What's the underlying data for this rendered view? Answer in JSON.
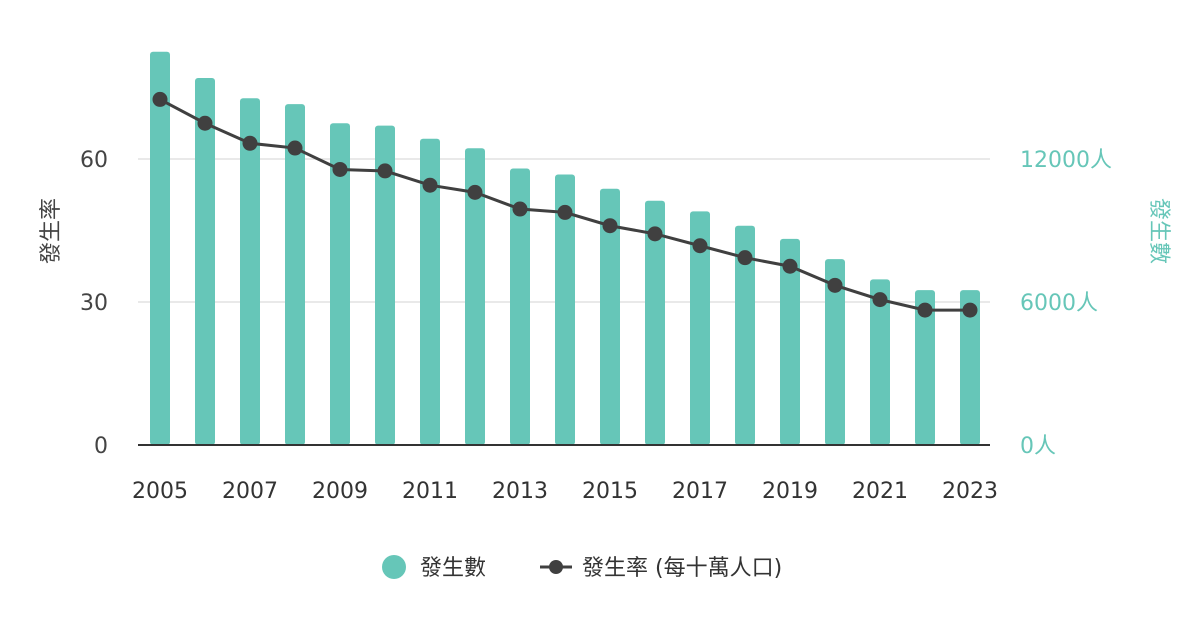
{
  "chart_data": {
    "type": "bar+line",
    "categories": [
      "2005",
      "2006",
      "2007",
      "2008",
      "2009",
      "2010",
      "2011",
      "2012",
      "2013",
      "2014",
      "2015",
      "2016",
      "2017",
      "2018",
      "2019",
      "2020",
      "2021",
      "2022",
      "2023"
    ],
    "x_tick_labels": [
      "2005",
      "2007",
      "2009",
      "2011",
      "2013",
      "2015",
      "2017",
      "2019",
      "2021",
      "2023"
    ],
    "series": [
      {
        "name": "發生數",
        "type": "bar",
        "axis": "right",
        "color": "#66c6b8",
        "values": [
          16500,
          15400,
          14550,
          14300,
          13500,
          13400,
          12850,
          12450,
          11600,
          11350,
          10750,
          10250,
          9800,
          9200,
          8650,
          7800,
          6950,
          6500,
          6500
        ]
      },
      {
        "name": "發生率 (每十萬人口)",
        "type": "line",
        "axis": "left",
        "color": "#404040",
        "values": [
          72.5,
          67.5,
          63.3,
          62.3,
          57.8,
          57.5,
          54.5,
          53.0,
          49.5,
          48.8,
          46.0,
          44.3,
          41.8,
          39.3,
          37.5,
          33.5,
          30.5,
          28.3,
          28.3
        ]
      }
    ],
    "left_axis": {
      "label": "發生率",
      "ticks": [
        "0",
        "30",
        "60"
      ],
      "tick_values": [
        0,
        30,
        60
      ],
      "ylim": [
        0,
        90
      ]
    },
    "right_axis": {
      "label": "發生數",
      "ticks": [
        "0人",
        "6000人",
        "12000人"
      ],
      "tick_values": [
        0,
        6000,
        12000
      ],
      "ylim": [
        0,
        18000
      ]
    },
    "grid": true,
    "legend_position": "bottom-center"
  }
}
